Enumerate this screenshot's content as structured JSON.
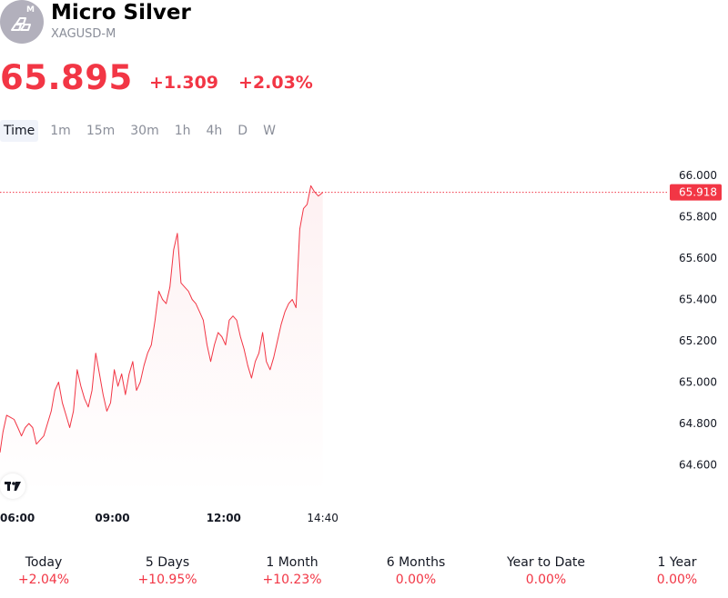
{
  "header": {
    "title": "Micro Silver",
    "symbol": "XAGUSD-M",
    "logo_badge": "M"
  },
  "quote": {
    "price": "65.895",
    "change": "+1.309",
    "change_pct": "+2.03%"
  },
  "tabs": [
    {
      "label": "Time",
      "active": true
    },
    {
      "label": "1m"
    },
    {
      "label": "15m"
    },
    {
      "label": "30m"
    },
    {
      "label": "1h"
    },
    {
      "label": "4h"
    },
    {
      "label": "D"
    },
    {
      "label": "W"
    }
  ],
  "periods": [
    {
      "label": "Today",
      "value": "+2.04%"
    },
    {
      "label": "5 Days",
      "value": "+10.95%"
    },
    {
      "label": "1 Month",
      "value": "+10.23%"
    },
    {
      "label": "6 Months",
      "value": "0.00%"
    },
    {
      "label": "Year to Date",
      "value": "0.00%"
    },
    {
      "label": "1 Year",
      "value": "0.00%"
    }
  ],
  "colors": {
    "down": "#f23645",
    "line": "#f23645",
    "muted": "#8a8e99"
  },
  "chart_data": {
    "type": "line",
    "x_unit": "hours",
    "x": [
      5.97,
      6.05,
      6.15,
      6.25,
      6.35,
      6.45,
      6.55,
      6.65,
      6.75,
      6.85,
      6.95,
      7.05,
      7.15,
      7.25,
      7.35,
      7.45,
      7.55,
      7.65,
      7.75,
      7.85,
      7.95,
      8.05,
      8.15,
      8.25,
      8.35,
      8.45,
      8.55,
      8.65,
      8.75,
      8.85,
      8.95,
      9.05,
      9.15,
      9.25,
      9.35,
      9.45,
      9.55,
      9.65,
      9.75,
      9.85,
      9.95,
      10.05,
      10.15,
      10.25,
      10.35,
      10.45,
      10.55,
      10.65,
      10.75,
      10.85,
      10.95,
      11.05,
      11.15,
      11.25,
      11.35,
      11.45,
      11.55,
      11.65,
      11.75,
      11.85,
      11.95,
      12.05,
      12.15,
      12.25,
      12.35,
      12.45,
      12.55,
      12.65,
      12.75,
      12.85,
      12.95,
      13.05,
      13.15,
      13.25,
      13.35,
      13.45,
      13.55,
      13.65,
      13.75,
      13.85,
      13.95,
      14.05,
      14.15,
      14.25,
      14.35,
      14.45,
      14.55,
      14.67
    ],
    "values": [
      64.66,
      64.76,
      64.84,
      64.83,
      64.82,
      64.78,
      64.74,
      64.78,
      64.8,
      64.78,
      64.7,
      64.72,
      64.74,
      64.8,
      64.86,
      64.96,
      65.0,
      64.9,
      64.84,
      64.78,
      64.86,
      65.06,
      64.98,
      64.92,
      64.88,
      64.96,
      65.14,
      65.04,
      64.94,
      64.86,
      64.9,
      65.06,
      64.98,
      65.04,
      64.94,
      65.04,
      65.1,
      64.96,
      65.0,
      65.08,
      65.14,
      65.18,
      65.3,
      65.44,
      65.4,
      65.38,
      65.46,
      65.64,
      65.72,
      65.48,
      65.46,
      65.44,
      65.4,
      65.38,
      65.34,
      65.3,
      65.18,
      65.1,
      65.18,
      65.24,
      65.22,
      65.18,
      65.3,
      65.32,
      65.3,
      65.22,
      65.16,
      65.08,
      65.02,
      65.1,
      65.14,
      65.24,
      65.1,
      65.06,
      65.12,
      65.2,
      65.28,
      65.34,
      65.38,
      65.4,
      65.36,
      65.74,
      65.84,
      65.86,
      65.95,
      65.92,
      65.9,
      65.918
    ],
    "x_ticks": [
      {
        "x": 6,
        "label": "06:00",
        "bold": true
      },
      {
        "x": 9,
        "label": "09:00",
        "bold": true
      },
      {
        "x": 12,
        "label": "12:00",
        "bold": true
      },
      {
        "x": 14.67,
        "label": "14:40",
        "bold": false
      }
    ],
    "y_ticks": [
      {
        "y": 66.0,
        "label": "66.000"
      },
      {
        "y": 65.8,
        "label": "65.800"
      },
      {
        "y": 65.6,
        "label": "65.600"
      },
      {
        "y": 65.4,
        "label": "65.400"
      },
      {
        "y": 65.2,
        "label": "65.200"
      },
      {
        "y": 65.0,
        "label": "65.000"
      },
      {
        "y": 64.8,
        "label": "64.800"
      },
      {
        "y": 64.6,
        "label": "64.600"
      }
    ],
    "last_price": 65.918,
    "last_price_label": "65.918",
    "xlim": [
      5.97,
      24.0
    ],
    "ylim": [
      64.44,
      66.1
    ],
    "grid": false,
    "legend": false
  }
}
